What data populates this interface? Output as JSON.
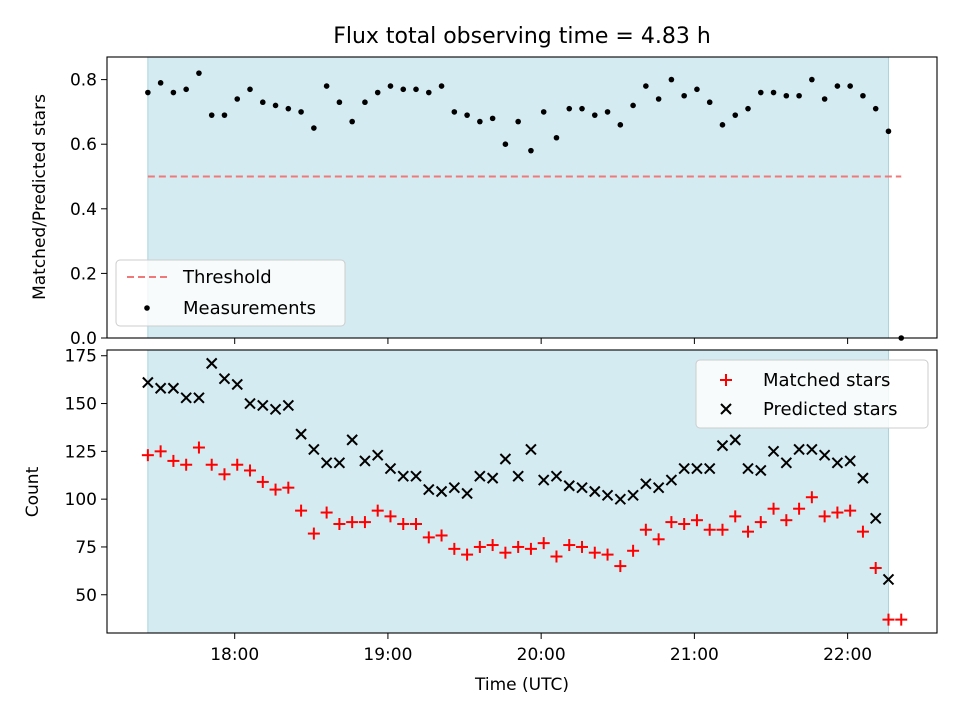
{
  "chart_data": [
    {
      "type": "scatter",
      "title": "Flux total observing time = 4.83 h",
      "xlabel": "",
      "ylabel": "Matched/Predicted stars",
      "xlim": [
        "17:10",
        "22:35"
      ],
      "ylim": [
        0,
        0.87
      ],
      "yticks": [
        0.0,
        0.2,
        0.4,
        0.6,
        0.8
      ],
      "ytick_labels": [
        "0.0",
        "0.2",
        "0.4",
        "0.6",
        "0.8"
      ],
      "xticks": [
        "18:00",
        "19:00",
        "20:00",
        "21:00",
        "22:00"
      ],
      "shaded_span": [
        "17:26",
        "22:16"
      ],
      "shade_color": "#d4ebf1",
      "threshold": {
        "name": "Threshold",
        "value": 0.5,
        "x_range": [
          "17:26",
          "22:21"
        ],
        "color": "#f07878",
        "style": "dashed"
      },
      "legend": {
        "placement": "lower-left",
        "entries": [
          "Threshold",
          "Measurements"
        ]
      },
      "series": [
        {
          "name": "Measurements",
          "color": "#000000",
          "marker": "dot",
          "x": [
            "17:26",
            "17:31",
            "17:36",
            "17:41",
            "17:46",
            "17:51",
            "17:56",
            "18:01",
            "18:06",
            "18:11",
            "18:16",
            "18:21",
            "18:26",
            "18:31",
            "18:36",
            "18:41",
            "18:46",
            "18:51",
            "18:56",
            "19:01",
            "19:06",
            "19:11",
            "19:16",
            "19:21",
            "19:26",
            "19:31",
            "19:36",
            "19:41",
            "19:46",
            "19:51",
            "19:56",
            "20:01",
            "20:06",
            "20:11",
            "20:16",
            "20:21",
            "20:26",
            "20:31",
            "20:36",
            "20:41",
            "20:46",
            "20:51",
            "20:56",
            "21:01",
            "21:06",
            "21:11",
            "21:16",
            "21:21",
            "21:26",
            "21:31",
            "21:36",
            "21:41",
            "21:46",
            "21:51",
            "21:56",
            "22:01",
            "22:06",
            "22:11",
            "22:16",
            "22:21"
          ],
          "y": [
            0.76,
            0.79,
            0.76,
            0.77,
            0.82,
            0.69,
            0.69,
            0.74,
            0.77,
            0.73,
            0.72,
            0.71,
            0.7,
            0.65,
            0.78,
            0.73,
            0.67,
            0.73,
            0.76,
            0.78,
            0.77,
            0.77,
            0.76,
            0.78,
            0.7,
            0.69,
            0.67,
            0.68,
            0.6,
            0.67,
            0.58,
            0.7,
            0.62,
            0.71,
            0.71,
            0.69,
            0.7,
            0.66,
            0.72,
            0.78,
            0.74,
            0.8,
            0.75,
            0.77,
            0.73,
            0.66,
            0.69,
            0.71,
            0.76,
            0.76,
            0.75,
            0.75,
            0.8,
            0.74,
            0.78,
            0.78,
            0.75,
            0.71,
            0.64,
            0.0
          ]
        }
      ]
    },
    {
      "type": "scatter",
      "title": "",
      "xlabel": "Time (UTC)",
      "ylabel": "Count",
      "xlim": [
        "17:10",
        "22:35"
      ],
      "ylim": [
        30,
        178
      ],
      "yticks": [
        50,
        75,
        100,
        125,
        150,
        175
      ],
      "ytick_labels": [
        "50",
        "75",
        "100",
        "125",
        "150",
        "175"
      ],
      "xticks": [
        "18:00",
        "19:00",
        "20:00",
        "21:00",
        "22:00"
      ],
      "xtick_labels": [
        "18:00",
        "19:00",
        "20:00",
        "21:00",
        "22:00"
      ],
      "shaded_span": [
        "17:26",
        "22:16"
      ],
      "shade_color": "#d4ebf1",
      "legend": {
        "placement": "top-right",
        "entries": [
          "Matched stars",
          "Predicted stars"
        ]
      },
      "series": [
        {
          "name": "Matched stars",
          "color": "#ff0000",
          "marker": "plus",
          "x": [
            "17:26",
            "17:31",
            "17:36",
            "17:41",
            "17:46",
            "17:51",
            "17:56",
            "18:01",
            "18:06",
            "18:11",
            "18:16",
            "18:21",
            "18:26",
            "18:31",
            "18:36",
            "18:41",
            "18:46",
            "18:51",
            "18:56",
            "19:01",
            "19:06",
            "19:11",
            "19:16",
            "19:21",
            "19:26",
            "19:31",
            "19:36",
            "19:41",
            "19:46",
            "19:51",
            "19:56",
            "20:01",
            "20:06",
            "20:11",
            "20:16",
            "20:21",
            "20:26",
            "20:31",
            "20:36",
            "20:41",
            "20:46",
            "20:51",
            "20:56",
            "21:01",
            "21:06",
            "21:11",
            "21:16",
            "21:21",
            "21:26",
            "21:31",
            "21:36",
            "21:41",
            "21:46",
            "21:51",
            "21:56",
            "22:01",
            "22:06",
            "22:11",
            "22:16",
            "22:21"
          ],
          "y": [
            123,
            125,
            120,
            118,
            127,
            118,
            113,
            118,
            115,
            109,
            105,
            106,
            94,
            82,
            93,
            87,
            88,
            88,
            94,
            91,
            87,
            87,
            80,
            81,
            74,
            71,
            75,
            76,
            72,
            75,
            74,
            77,
            70,
            76,
            75,
            72,
            71,
            65,
            73,
            84,
            79,
            88,
            87,
            89,
            84,
            84,
            91,
            83,
            88,
            95,
            89,
            95,
            101,
            91,
            93,
            94,
            83,
            64,
            37,
            37
          ]
        },
        {
          "name": "Predicted stars",
          "color": "#000000",
          "marker": "x",
          "x": [
            "17:26",
            "17:31",
            "17:36",
            "17:41",
            "17:46",
            "17:51",
            "17:56",
            "18:01",
            "18:06",
            "18:11",
            "18:16",
            "18:21",
            "18:26",
            "18:31",
            "18:36",
            "18:41",
            "18:46",
            "18:51",
            "18:56",
            "19:01",
            "19:06",
            "19:11",
            "19:16",
            "19:21",
            "19:26",
            "19:31",
            "19:36",
            "19:41",
            "19:46",
            "19:51",
            "19:56",
            "20:01",
            "20:06",
            "20:11",
            "20:16",
            "20:21",
            "20:26",
            "20:31",
            "20:36",
            "20:41",
            "20:46",
            "20:51",
            "20:56",
            "21:01",
            "21:06",
            "21:11",
            "21:16",
            "21:21",
            "21:26",
            "21:31",
            "21:36",
            "21:41",
            "21:46",
            "21:51",
            "21:56",
            "22:01",
            "22:06",
            "22:11",
            "22:16"
          ],
          "y": [
            161,
            158,
            158,
            153,
            153,
            171,
            163,
            160,
            150,
            149,
            147,
            149,
            134,
            126,
            119,
            119,
            131,
            120,
            123,
            116,
            112,
            112,
            105,
            104,
            106,
            103,
            112,
            111,
            121,
            112,
            126,
            110,
            112,
            107,
            106,
            104,
            102,
            100,
            102,
            108,
            106,
            110,
            116,
            116,
            116,
            128,
            131,
            116,
            115,
            125,
            119,
            126,
            126,
            123,
            119,
            120,
            111,
            90,
            58
          ]
        }
      ]
    }
  ]
}
